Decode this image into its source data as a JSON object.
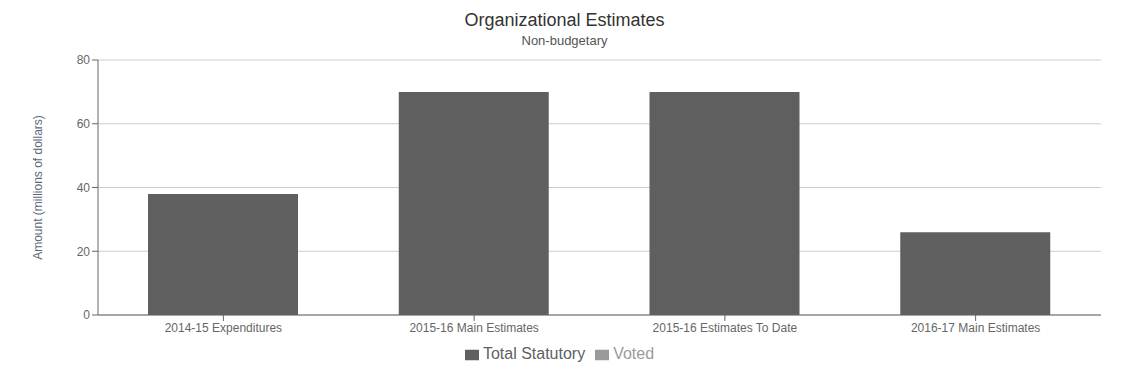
{
  "chart_data": {
    "type": "bar",
    "title": "Organizational Estimates",
    "subtitle": "Non-budgetary",
    "ylabel": "Amount (millions of dollars)",
    "categories": [
      "2014-15 Expenditures",
      "2015-16 Main Estimates",
      "2015-16 Estimates To Date",
      "2016-17 Main Estimates"
    ],
    "series": [
      {
        "name": "Total Statutory",
        "color": "#5f5f5f",
        "values": [
          38,
          70,
          70,
          26
        ]
      },
      {
        "name": "Voted",
        "color": "#9a9a9a",
        "values": [
          null,
          null,
          null,
          null
        ]
      }
    ],
    "ylim": [
      0,
      80
    ],
    "yticks": [
      0,
      20,
      40,
      60,
      80
    ],
    "grid": true,
    "legend": "bottom"
  }
}
